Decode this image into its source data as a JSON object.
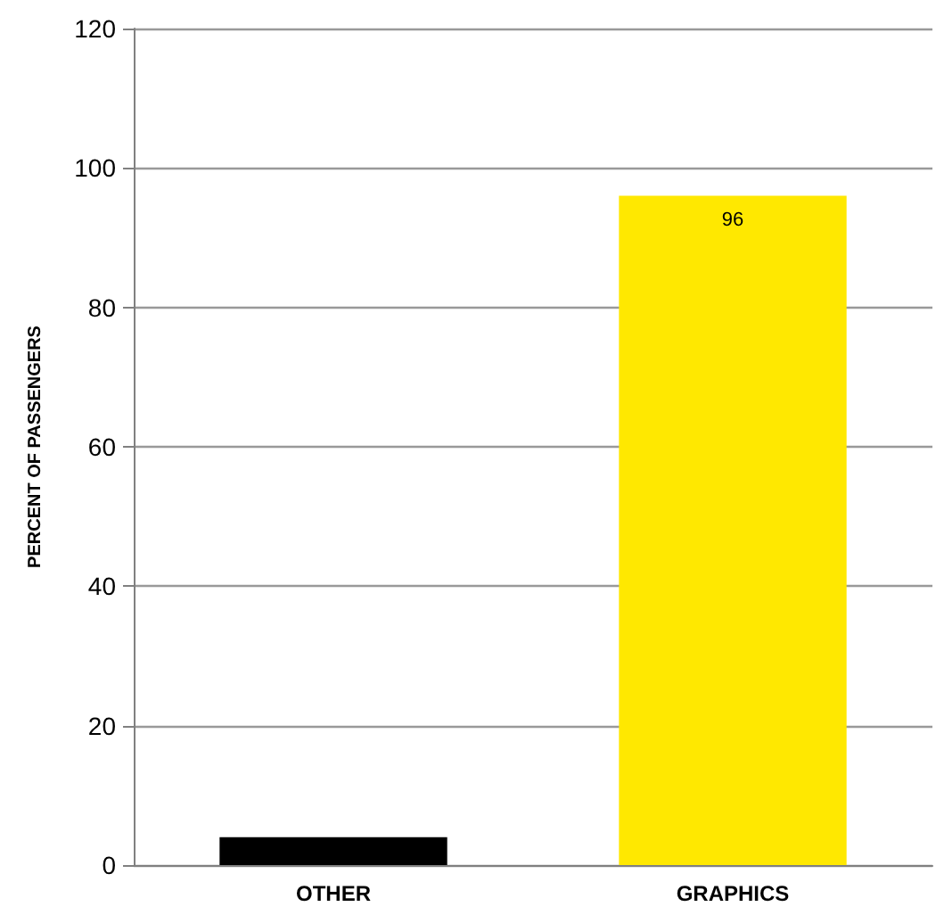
{
  "chart_data": {
    "type": "bar",
    "ylabel": "PERCENT OF PASSENGERS",
    "categories": [
      "OTHER",
      "GRAPHICS"
    ],
    "values": [
      4,
      96
    ],
    "colors": [
      "#000000",
      "#ffe800"
    ],
    "value_labels": [
      null,
      "96"
    ],
    "ylim": [
      0,
      120
    ],
    "yticks": [
      0,
      20,
      40,
      60,
      80,
      100,
      120
    ],
    "grid": "y"
  }
}
